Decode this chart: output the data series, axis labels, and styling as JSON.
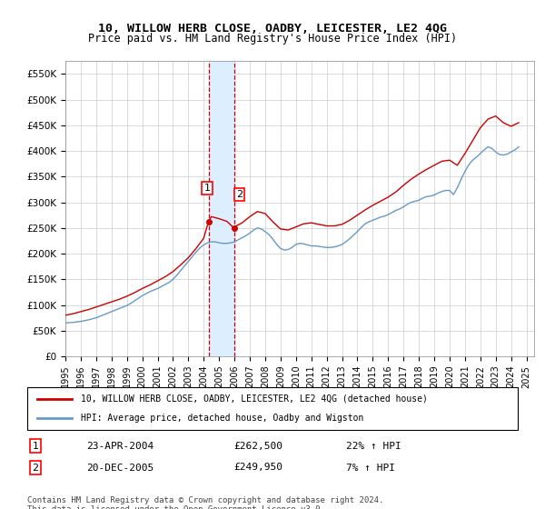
{
  "title": "10, WILLOW HERB CLOSE, OADBY, LEICESTER, LE2 4QG",
  "subtitle": "Price paid vs. HM Land Registry's House Price Index (HPI)",
  "ylabel_ticks": [
    "£0",
    "£50K",
    "£100K",
    "£150K",
    "£200K",
    "£250K",
    "£300K",
    "£350K",
    "£400K",
    "£450K",
    "£500K",
    "£550K"
  ],
  "ylim": [
    0,
    575000
  ],
  "xlim_start": 1995.0,
  "xlim_end": 2025.5,
  "transaction1_x": 2004.31,
  "transaction1_y": 262500,
  "transaction1_label": "23-APR-2004",
  "transaction1_price": "£262,500",
  "transaction1_hpi": "22% ↑ HPI",
  "transaction2_x": 2005.97,
  "transaction2_y": 249950,
  "transaction2_label": "20-DEC-2005",
  "transaction2_price": "£249,950",
  "transaction2_hpi": "7% ↑ HPI",
  "property_color": "#cc0000",
  "hpi_color": "#6699cc",
  "shading_color": "#ddeeff",
  "grid_color": "#cccccc",
  "legend_property_label": "10, WILLOW HERB CLOSE, OADBY, LEICESTER, LE2 4QG (detached house)",
  "legend_hpi_label": "HPI: Average price, detached house, Oadby and Wigston",
  "footnote": "Contains HM Land Registry data © Crown copyright and database right 2024.\nThis data is licensed under the Open Government Licence v3.0.",
  "hpi_data_x": [
    1995.0,
    1995.25,
    1995.5,
    1995.75,
    1996.0,
    1996.25,
    1996.5,
    1996.75,
    1997.0,
    1997.25,
    1997.5,
    1997.75,
    1998.0,
    1998.25,
    1998.5,
    1998.75,
    1999.0,
    1999.25,
    1999.5,
    1999.75,
    2000.0,
    2000.25,
    2000.5,
    2000.75,
    2001.0,
    2001.25,
    2001.5,
    2001.75,
    2002.0,
    2002.25,
    2002.5,
    2002.75,
    2003.0,
    2003.25,
    2003.5,
    2003.75,
    2004.0,
    2004.25,
    2004.5,
    2004.75,
    2005.0,
    2005.25,
    2005.5,
    2005.75,
    2006.0,
    2006.25,
    2006.5,
    2006.75,
    2007.0,
    2007.25,
    2007.5,
    2007.75,
    2008.0,
    2008.25,
    2008.5,
    2008.75,
    2009.0,
    2009.25,
    2009.5,
    2009.75,
    2010.0,
    2010.25,
    2010.5,
    2010.75,
    2011.0,
    2011.25,
    2011.5,
    2011.75,
    2012.0,
    2012.25,
    2012.5,
    2012.75,
    2013.0,
    2013.25,
    2013.5,
    2013.75,
    2014.0,
    2014.25,
    2014.5,
    2014.75,
    2015.0,
    2015.25,
    2015.5,
    2015.75,
    2016.0,
    2016.25,
    2016.5,
    2016.75,
    2017.0,
    2017.25,
    2017.5,
    2017.75,
    2018.0,
    2018.25,
    2018.5,
    2018.75,
    2019.0,
    2019.25,
    2019.5,
    2019.75,
    2020.0,
    2020.25,
    2020.5,
    2020.75,
    2021.0,
    2021.25,
    2021.5,
    2021.75,
    2022.0,
    2022.25,
    2022.5,
    2022.75,
    2023.0,
    2023.25,
    2023.5,
    2023.75,
    2024.0,
    2024.25,
    2024.5
  ],
  "hpi_data_y": [
    65000,
    65500,
    66000,
    67000,
    68000,
    69500,
    71000,
    73000,
    75000,
    78000,
    81000,
    84000,
    87000,
    90000,
    93000,
    96000,
    99000,
    103000,
    108000,
    113000,
    118000,
    122000,
    126000,
    129000,
    132000,
    136000,
    140000,
    144000,
    150000,
    158000,
    167000,
    176000,
    185000,
    194000,
    203000,
    211000,
    217000,
    221000,
    223000,
    223000,
    221000,
    220000,
    220000,
    221000,
    223000,
    227000,
    231000,
    235000,
    240000,
    246000,
    250000,
    248000,
    243000,
    237000,
    228000,
    218000,
    210000,
    207000,
    208000,
    212000,
    218000,
    220000,
    219000,
    217000,
    215000,
    215000,
    214000,
    213000,
    212000,
    212000,
    213000,
    215000,
    218000,
    223000,
    229000,
    236000,
    243000,
    251000,
    258000,
    262000,
    265000,
    268000,
    271000,
    273000,
    276000,
    280000,
    284000,
    287000,
    291000,
    296000,
    300000,
    302000,
    304000,
    308000,
    311000,
    312000,
    314000,
    318000,
    321000,
    323000,
    323000,
    315000,
    328000,
    345000,
    360000,
    373000,
    382000,
    388000,
    395000,
    402000,
    408000,
    405000,
    398000,
    393000,
    392000,
    394000,
    398000,
    402000,
    408000
  ],
  "property_data_x": [
    1995.0,
    1995.5,
    1996.0,
    1996.5,
    1997.0,
    1997.5,
    1998.0,
    1998.5,
    1999.0,
    1999.5,
    2000.0,
    2000.5,
    2001.0,
    2001.5,
    2002.0,
    2002.5,
    2003.0,
    2003.5,
    2004.0,
    2004.31,
    2004.5,
    2005.0,
    2005.5,
    2005.97,
    2006.0,
    2006.5,
    2007.0,
    2007.5,
    2008.0,
    2008.5,
    2009.0,
    2009.5,
    2010.0,
    2010.5,
    2011.0,
    2011.5,
    2012.0,
    2012.5,
    2013.0,
    2013.5,
    2014.0,
    2014.5,
    2015.0,
    2015.5,
    2016.0,
    2016.5,
    2017.0,
    2017.5,
    2018.0,
    2018.5,
    2019.0,
    2019.5,
    2020.0,
    2020.5,
    2021.0,
    2021.5,
    2022.0,
    2022.5,
    2023.0,
    2023.5,
    2024.0,
    2024.5
  ],
  "property_data_y": [
    80000,
    83000,
    87000,
    91000,
    96000,
    101000,
    106000,
    111000,
    117000,
    124000,
    132000,
    139000,
    147000,
    155000,
    165000,
    178000,
    192000,
    210000,
    230000,
    262500,
    272000,
    268000,
    263000,
    249950,
    252000,
    260000,
    272000,
    282000,
    278000,
    262000,
    248000,
    246000,
    252000,
    258000,
    260000,
    257000,
    254000,
    254000,
    257000,
    265000,
    275000,
    285000,
    294000,
    302000,
    310000,
    320000,
    333000,
    345000,
    355000,
    364000,
    372000,
    380000,
    382000,
    372000,
    395000,
    420000,
    445000,
    462000,
    468000,
    455000,
    448000,
    455000
  ]
}
